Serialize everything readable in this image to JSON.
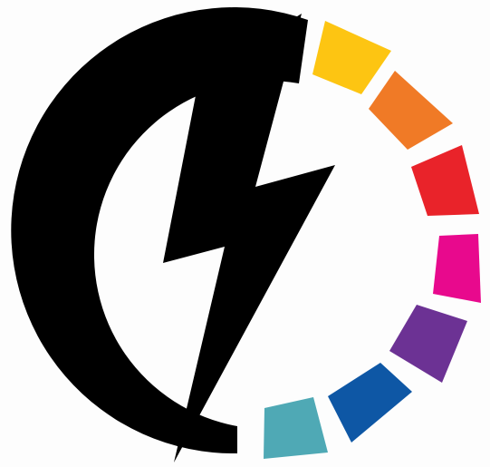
{
  "logo": {
    "icon": "lightning-bolt-color-wheel-logo",
    "background_color": "#fdfdfd",
    "ring_color": "#000000",
    "bolt_color": "#000000",
    "segments": [
      {
        "name": "yellow-segment",
        "color": "#fdc512"
      },
      {
        "name": "orange-segment",
        "color": "#f07a26"
      },
      {
        "name": "red-segment",
        "color": "#e9232a"
      },
      {
        "name": "magenta-segment",
        "color": "#e8098d"
      },
      {
        "name": "purple-segment",
        "color": "#6c3294"
      },
      {
        "name": "blue-segment",
        "color": "#0e57a5"
      },
      {
        "name": "teal-segment",
        "color": "#4fa9b5"
      }
    ]
  }
}
